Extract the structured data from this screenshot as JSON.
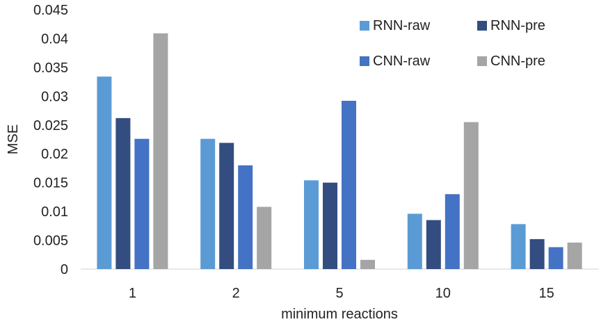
{
  "chart_data": {
    "type": "bar",
    "categories": [
      "1",
      "2",
      "5",
      "10",
      "15"
    ],
    "series": [
      {
        "name": "RNN-raw",
        "color": "#5b9bd5",
        "values": [
          0.0334,
          0.0226,
          0.0154,
          0.0096,
          0.0078
        ]
      },
      {
        "name": "RNN-pre",
        "color": "#334d80",
        "values": [
          0.0262,
          0.0219,
          0.015,
          0.0085,
          0.0052
        ]
      },
      {
        "name": "CNN-raw",
        "color": "#4472c4",
        "values": [
          0.0226,
          0.018,
          0.0292,
          0.013,
          0.0038
        ]
      },
      {
        "name": "CNN-pre",
        "color": "#a5a5a5",
        "values": [
          0.0409,
          0.0108,
          0.0016,
          0.0255,
          0.0046
        ]
      }
    ],
    "xlabel": "minimum reactions",
    "ylabel": "MSE",
    "ylim": [
      0,
      0.045
    ],
    "yticks": [
      "0",
      "0.005",
      "0.01",
      "0.015",
      "0.02",
      "0.025",
      "0.03",
      "0.035",
      "0.04",
      "0.045"
    ],
    "grid": false,
    "legend": "top-right"
  }
}
